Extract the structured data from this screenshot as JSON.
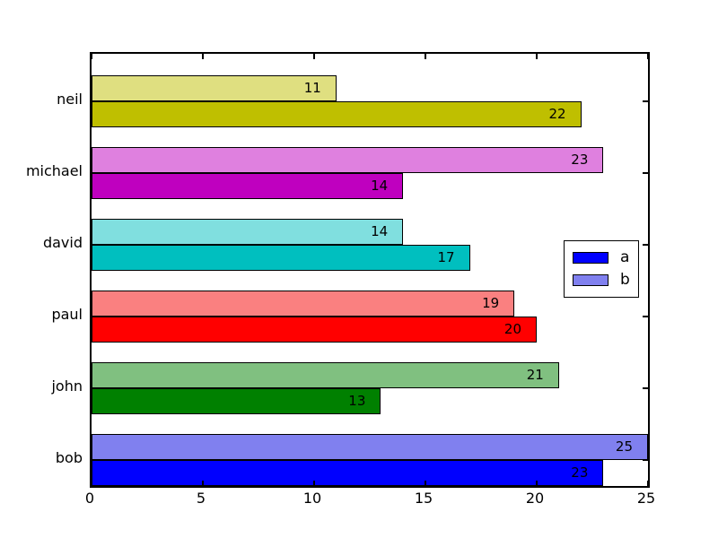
{
  "chart_data": {
    "type": "bar",
    "orientation": "horizontal",
    "title": "",
    "xlabel": "",
    "ylabel": "",
    "xlim": [
      0,
      25
    ],
    "xticks": [
      "0",
      "5",
      "10",
      "15",
      "20",
      "25"
    ],
    "grid": false,
    "categories_top_to_bottom": [
      "neil",
      "michael",
      "david",
      "paul",
      "john",
      "bob"
    ],
    "series": [
      {
        "name": "a",
        "position_in_group": "bottom",
        "values": [
          22,
          14,
          17,
          20,
          13,
          23
        ],
        "colors": [
          "#bfbf00",
          "#bf00bf",
          "#00bfbf",
          "#ff0000",
          "#008000",
          "#0000ff"
        ]
      },
      {
        "name": "b",
        "position_in_group": "top",
        "values": [
          11,
          23,
          14,
          19,
          21,
          25
        ],
        "colors": [
          "#dfdf80",
          "#df80df",
          "#80dfdf",
          "#fa8080",
          "#80c080",
          "#8080ef"
        ]
      }
    ],
    "bar_value_labels": true,
    "legend": {
      "position": "center-right",
      "items": [
        {
          "label": "a",
          "color": "#0000ff"
        },
        {
          "label": "b",
          "color": "#8080ef"
        }
      ]
    },
    "axis_color": "#000000",
    "background_color": "#ffffff"
  }
}
